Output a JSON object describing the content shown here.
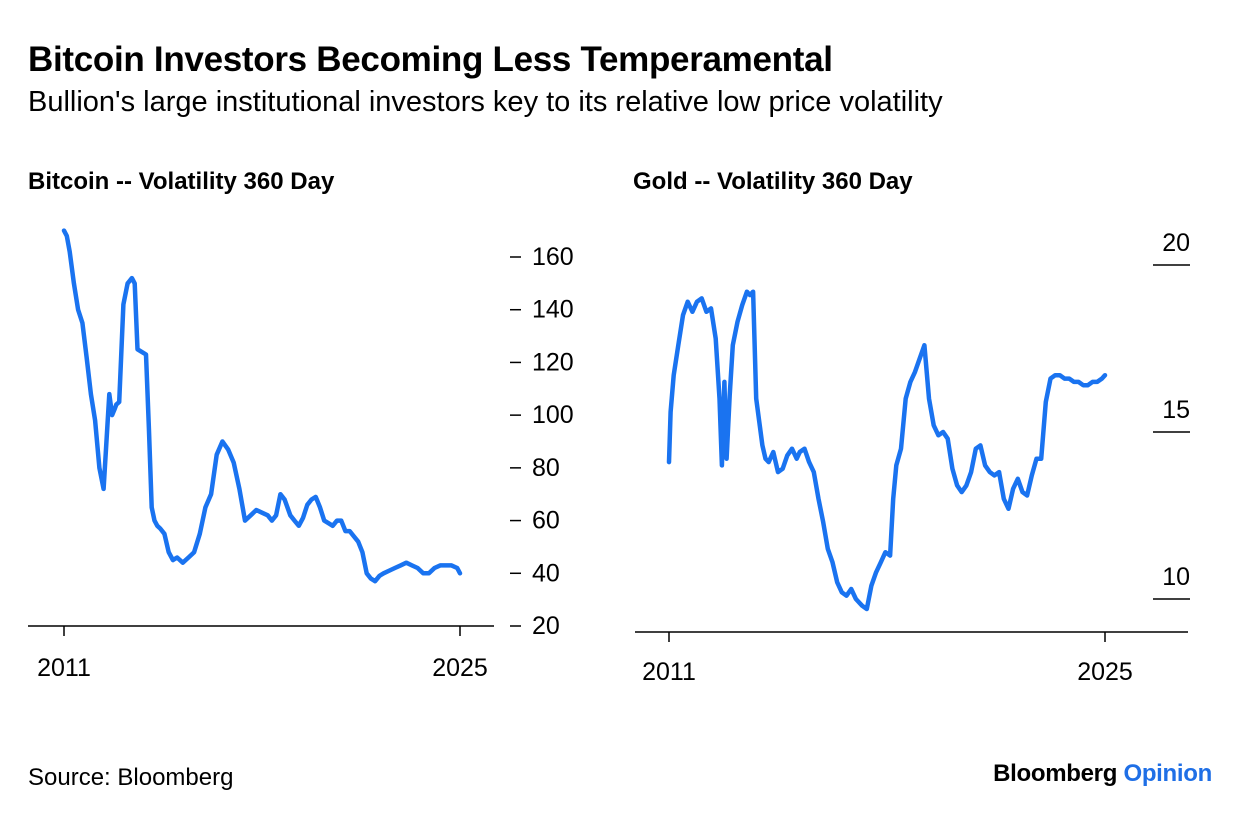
{
  "header": {
    "title": "Bitcoin Investors Becoming Less Temperamental",
    "subtitle": "Bullion's large institutional investors key to its relative low price volatility"
  },
  "footer": {
    "source": "Source: Bloomberg",
    "logo_brand": "Bloomberg",
    "logo_section": "Opinion"
  },
  "colors": {
    "line": "#1a73f0",
    "accent": "#1f6fe6"
  },
  "chart_data": [
    {
      "type": "line",
      "title": "Bitcoin -- Volatility 360 Day",
      "xlabel": "",
      "ylabel": "",
      "xlim": [
        2011,
        2025
      ],
      "ylim": [
        20,
        160
      ],
      "xticks": [
        2011,
        2025
      ],
      "yticks": [
        20,
        40,
        60,
        80,
        100,
        120,
        140,
        160
      ],
      "y_axis_side": "right",
      "grid": false,
      "series": [
        {
          "x": [
            2011.0,
            2011.1,
            2011.2,
            2011.35,
            2011.5,
            2011.65,
            2011.8,
            2011.95,
            2012.1,
            2012.25,
            2012.4,
            2012.6,
            2012.7,
            2012.78,
            2012.85,
            2012.95,
            2013.1,
            2013.25,
            2013.4,
            2013.5,
            2013.6,
            2013.75,
            2013.9,
            2014.0,
            2014.1,
            2014.2,
            2014.3,
            2014.4,
            2014.55,
            2014.7,
            2014.85,
            2015.0,
            2015.2,
            2015.4,
            2015.6,
            2015.8,
            2016.0,
            2016.2,
            2016.4,
            2016.6,
            2016.8,
            2017.0,
            2017.2,
            2017.4,
            2017.6,
            2017.8,
            2018.0,
            2018.2,
            2018.35,
            2018.5,
            2018.65,
            2018.8,
            2019.0,
            2019.15,
            2019.3,
            2019.45,
            2019.6,
            2019.75,
            2019.9,
            2020.05,
            2020.2,
            2020.35,
            2020.5,
            2020.65,
            2020.8,
            2020.95,
            2021.1,
            2021.25,
            2021.4,
            2021.55,
            2021.7,
            2021.85,
            2022.0,
            2022.15,
            2022.3,
            2022.5,
            2022.7,
            2022.9,
            2023.1,
            2023.3,
            2023.5,
            2023.7,
            2023.9,
            2024.1,
            2024.3,
            2024.5,
            2024.7,
            2024.9,
            2025.0
          ],
          "y": [
            170,
            168,
            162,
            150,
            140,
            135,
            122,
            108,
            98,
            80,
            72,
            108,
            100,
            102,
            104,
            105,
            142,
            150,
            152,
            150,
            125,
            124,
            123,
            95,
            65,
            60,
            58,
            57,
            55,
            48,
            45,
            46,
            44,
            46,
            48,
            55,
            65,
            70,
            85,
            90,
            87,
            82,
            72,
            60,
            62,
            64,
            63,
            62,
            60,
            62,
            70,
            68,
            62,
            60,
            58,
            61,
            66,
            68,
            69,
            65,
            60,
            59,
            58,
            60,
            60,
            56,
            56,
            54,
            52,
            48,
            40,
            38,
            37,
            39,
            40,
            41,
            42,
            43,
            44,
            43,
            42,
            40,
            40,
            42,
            43,
            43,
            43,
            42,
            40
          ]
        }
      ]
    },
    {
      "type": "line",
      "title": "Gold -- Volatility 360 Day",
      "xlabel": "",
      "ylabel": "",
      "xlim": [
        2011,
        2025
      ],
      "ylim": [
        10,
        20
      ],
      "xticks": [
        2011,
        2025
      ],
      "yticks": [
        10,
        15,
        20
      ],
      "y_axis_side": "right",
      "grid": false,
      "series": [
        {
          "x": [
            2011.0,
            2011.05,
            2011.15,
            2011.3,
            2011.45,
            2011.6,
            2011.75,
            2011.9,
            2012.05,
            2012.2,
            2012.35,
            2012.5,
            2012.62,
            2012.7,
            2012.78,
            2012.85,
            2012.95,
            2013.05,
            2013.2,
            2013.35,
            2013.5,
            2013.6,
            2013.7,
            2013.8,
            2013.9,
            2014.0,
            2014.1,
            2014.2,
            2014.35,
            2014.5,
            2014.65,
            2014.8,
            2014.95,
            2015.1,
            2015.2,
            2015.35,
            2015.5,
            2015.65,
            2015.8,
            2015.95,
            2016.1,
            2016.25,
            2016.4,
            2016.55,
            2016.7,
            2016.85,
            2017.0,
            2017.2,
            2017.35,
            2017.5,
            2017.65,
            2017.8,
            2017.95,
            2018.1,
            2018.2,
            2018.3,
            2018.45,
            2018.6,
            2018.75,
            2018.9,
            2019.05,
            2019.2,
            2019.35,
            2019.5,
            2019.65,
            2019.8,
            2019.95,
            2020.1,
            2020.25,
            2020.4,
            2020.55,
            2020.7,
            2020.85,
            2021.0,
            2021.15,
            2021.3,
            2021.45,
            2021.6,
            2021.75,
            2021.9,
            2022.05,
            2022.2,
            2022.35,
            2022.5,
            2022.65,
            2022.8,
            2022.95,
            2023.1,
            2023.25,
            2023.4,
            2023.55,
            2023.7,
            2023.85,
            2024.0,
            2024.15,
            2024.3,
            2024.45,
            2024.6,
            2024.75,
            2024.9,
            2025.0
          ],
          "y": [
            14.1,
            15.6,
            16.7,
            17.6,
            18.5,
            18.9,
            18.6,
            18.9,
            19.0,
            18.6,
            18.7,
            17.8,
            16.0,
            14.0,
            16.5,
            14.2,
            16.1,
            17.6,
            18.3,
            18.8,
            19.2,
            19.1,
            19.2,
            16.0,
            15.3,
            14.6,
            14.2,
            14.1,
            14.4,
            13.8,
            13.9,
            14.3,
            14.5,
            14.2,
            14.4,
            14.5,
            14.1,
            13.8,
            13.0,
            12.3,
            11.5,
            11.1,
            10.5,
            10.2,
            10.1,
            10.3,
            10.0,
            9.8,
            9.7,
            10.4,
            10.8,
            11.1,
            11.4,
            11.3,
            13.0,
            14.0,
            14.5,
            16.0,
            16.5,
            16.8,
            17.2,
            17.6,
            16.0,
            15.2,
            14.9,
            15.0,
            14.8,
            13.9,
            13.4,
            13.2,
            13.4,
            13.8,
            14.5,
            14.6,
            14.0,
            13.8,
            13.7,
            13.8,
            13.0,
            12.7,
            13.3,
            13.6,
            13.2,
            13.1,
            13.7,
            14.2,
            14.2,
            15.9,
            16.6,
            16.7,
            16.7,
            16.6,
            16.6,
            16.5,
            16.5,
            16.4,
            16.4,
            16.5,
            16.5,
            16.6,
            16.7
          ]
        }
      ]
    }
  ]
}
